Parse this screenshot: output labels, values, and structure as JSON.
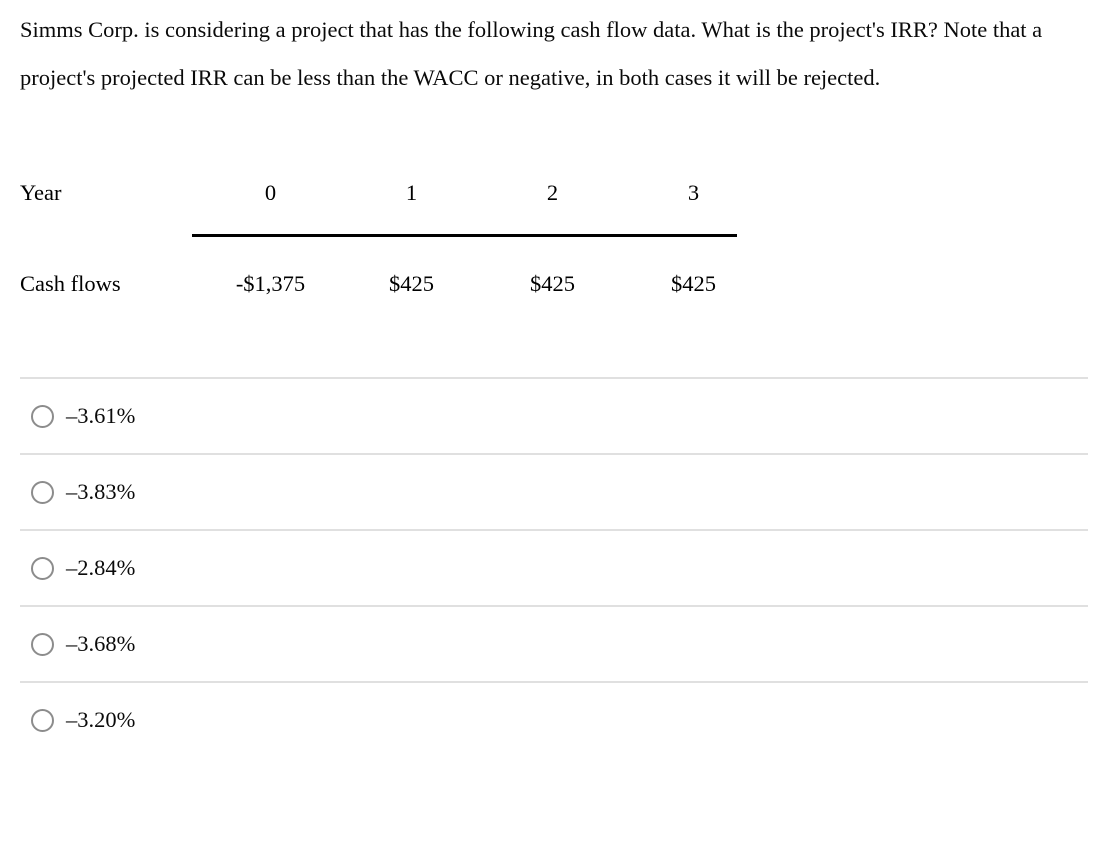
{
  "question": {
    "text": "Simms Corp. is considering a project that has the following cash flow data. What is the project's IRR? Note that a project's projected IRR can be less than the WACC or negative, in both cases it will be rejected."
  },
  "cashflow_table": {
    "row_labels": [
      "Year",
      "Cash flows"
    ],
    "years": [
      "0",
      "1",
      "2",
      "3"
    ],
    "cash_flows": [
      "-$1,375",
      "$425",
      "$425",
      "$425"
    ]
  },
  "options": [
    {
      "label": "–3.61%"
    },
    {
      "label": "–3.83%"
    },
    {
      "label": "–2.84%"
    },
    {
      "label": "–3.68%"
    },
    {
      "label": "–3.20%"
    }
  ],
  "colors": {
    "background": "#ffffff",
    "text": "#0a0a0a",
    "table_rule": "#000000",
    "divider": "#e0e0e0",
    "radio_border": "#8c8c8c"
  }
}
